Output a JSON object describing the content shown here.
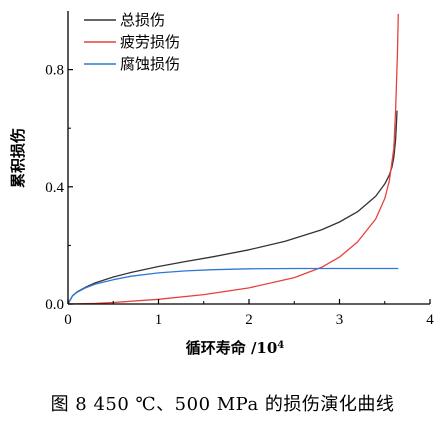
{
  "caption": "图 8   450 ℃、500 MPa 的损伤演化曲线",
  "chart_data": {
    "type": "line",
    "title": "",
    "xlabel": "循环寿命 /10",
    "xlabel_sup": "4",
    "ylabel": "累积损伤",
    "xlim": [
      0,
      4
    ],
    "ylim": [
      0,
      1.0
    ],
    "xticks": [
      0,
      1,
      2,
      3,
      4
    ],
    "yticks": [
      0.0,
      0.4,
      0.8
    ],
    "xtick_labels": [
      "0",
      "1",
      "2",
      "3",
      "4"
    ],
    "ytick_labels": [
      "0.0",
      "0.4",
      "0.8"
    ],
    "grid": false,
    "legend_position": "top-right",
    "series": [
      {
        "name": "总损伤",
        "color": "#333333",
        "x": [
          0,
          0.05,
          0.1,
          0.2,
          0.3,
          0.5,
          0.7,
          1.0,
          1.3,
          1.6,
          2.0,
          2.4,
          2.8,
          3.0,
          3.2,
          3.4,
          3.5,
          3.55,
          3.58,
          3.6,
          3.62,
          3.63,
          3.635
        ],
        "y": [
          0,
          0.028,
          0.041,
          0.058,
          0.072,
          0.092,
          0.108,
          0.128,
          0.145,
          0.161,
          0.185,
          0.214,
          0.253,
          0.28,
          0.315,
          0.368,
          0.41,
          0.44,
          0.468,
          0.5,
          0.56,
          0.62,
          0.66
        ]
      },
      {
        "name": "疲劳损伤",
        "color": "#e8413b",
        "x": [
          0,
          0.3,
          0.5,
          1.0,
          1.5,
          2.0,
          2.5,
          2.8,
          3.0,
          3.2,
          3.4,
          3.5,
          3.55,
          3.6,
          3.62,
          3.64,
          3.65
        ],
        "y": [
          0,
          0.002,
          0.005,
          0.016,
          0.032,
          0.055,
          0.09,
          0.125,
          0.16,
          0.212,
          0.29,
          0.36,
          0.42,
          0.53,
          0.66,
          0.85,
          0.99
        ]
      },
      {
        "name": "腐蚀损伤",
        "color": "#2f78d4",
        "x": [
          0,
          0.05,
          0.1,
          0.2,
          0.3,
          0.5,
          0.7,
          1.0,
          1.3,
          1.6,
          2.0,
          2.5,
          3.0,
          3.3,
          3.65
        ],
        "y": [
          0,
          0.028,
          0.04,
          0.056,
          0.068,
          0.083,
          0.095,
          0.106,
          0.113,
          0.117,
          0.12,
          0.121,
          0.121,
          0.121,
          0.121
        ]
      }
    ]
  }
}
